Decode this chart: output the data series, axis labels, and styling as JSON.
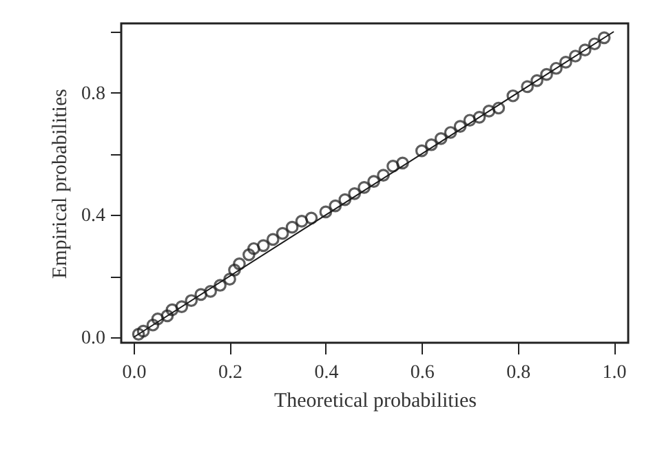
{
  "chart_data": {
    "type": "scatter",
    "xlabel": "Theoretical probabilities",
    "ylabel": "Empirical probabilities",
    "xlim": [
      -0.026,
      1.03
    ],
    "ylim": [
      -0.018,
      1.027
    ],
    "xticks": [
      {
        "value": 0,
        "label": "0.0"
      },
      0.2,
      0.4,
      0.6,
      0.8,
      {
        "value": 1,
        "label": "1.0"
      }
    ],
    "yticks": [
      {
        "value": 0,
        "label": "0.0"
      },
      {
        "value": 0.2,
        "label": null
      },
      0.4,
      {
        "value": 0.6,
        "label": null
      },
      0.8,
      {
        "value": 1,
        "label": null
      }
    ],
    "grid": false,
    "series": [
      {
        "marker": "circle",
        "color": "#1a1a1a",
        "x": [
          0.01,
          0.02,
          0.04,
          0.05,
          0.07,
          0.08,
          0.1,
          0.12,
          0.14,
          0.16,
          0.18,
          0.2,
          0.21,
          0.22,
          0.24,
          0.25,
          0.27,
          0.29,
          0.31,
          0.33,
          0.35,
          0.37,
          0.4,
          0.42,
          0.44,
          0.46,
          0.48,
          0.5,
          0.52,
          0.54,
          0.56,
          0.6,
          0.62,
          0.64,
          0.66,
          0.68,
          0.7,
          0.72,
          0.74,
          0.76,
          0.79,
          0.82,
          0.84,
          0.86,
          0.88,
          0.9,
          0.92,
          0.94,
          0.96,
          0.98
        ],
        "values": [
          0.01,
          0.02,
          0.04,
          0.06,
          0.07,
          0.09,
          0.1,
          0.12,
          0.14,
          0.15,
          0.17,
          0.19,
          0.22,
          0.24,
          0.27,
          0.29,
          0.3,
          0.32,
          0.34,
          0.36,
          0.38,
          0.39,
          0.41,
          0.43,
          0.45,
          0.47,
          0.49,
          0.51,
          0.53,
          0.56,
          0.57,
          0.61,
          0.63,
          0.65,
          0.67,
          0.69,
          0.71,
          0.72,
          0.74,
          0.75,
          0.79,
          0.82,
          0.84,
          0.86,
          0.88,
          0.9,
          0.92,
          0.94,
          0.96,
          0.98
        ]
      },
      {
        "type": "line",
        "marker": "none",
        "color": "#1a1a1a",
        "x": [
          0,
          1
        ],
        "values": [
          0,
          1
        ]
      }
    ]
  }
}
